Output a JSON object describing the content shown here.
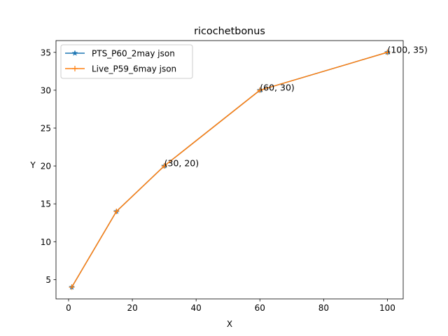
{
  "chart_data": {
    "type": "line",
    "title": "ricochetbonus",
    "xlabel": "X",
    "ylabel": "Y",
    "xlim": [
      -3.95,
      104.95
    ],
    "ylim": [
      2.45,
      36.55
    ],
    "xticks": [
      0,
      20,
      40,
      60,
      80,
      100
    ],
    "yticks": [
      5,
      10,
      15,
      20,
      25,
      30,
      35
    ],
    "grid": false,
    "legend_position": "upper-left",
    "series": [
      {
        "name": "PTS_P60_2may json",
        "color": "#1f77b4",
        "marker": "star",
        "x": [
          1,
          15,
          30,
          60,
          100
        ],
        "y": [
          4,
          14,
          20,
          30,
          35
        ]
      },
      {
        "name": "Live_P59_6may json",
        "color": "#ff7f0e",
        "marker": "plus",
        "x": [
          1,
          15,
          30,
          60,
          100
        ],
        "y": [
          4,
          14,
          20,
          30,
          35
        ]
      }
    ],
    "annotations": [
      {
        "text": "(30, 20)",
        "x": 30,
        "y": 20
      },
      {
        "text": "(60, 30)",
        "x": 60,
        "y": 30
      },
      {
        "text": "(100, 35)",
        "x": 100,
        "y": 35
      }
    ]
  }
}
